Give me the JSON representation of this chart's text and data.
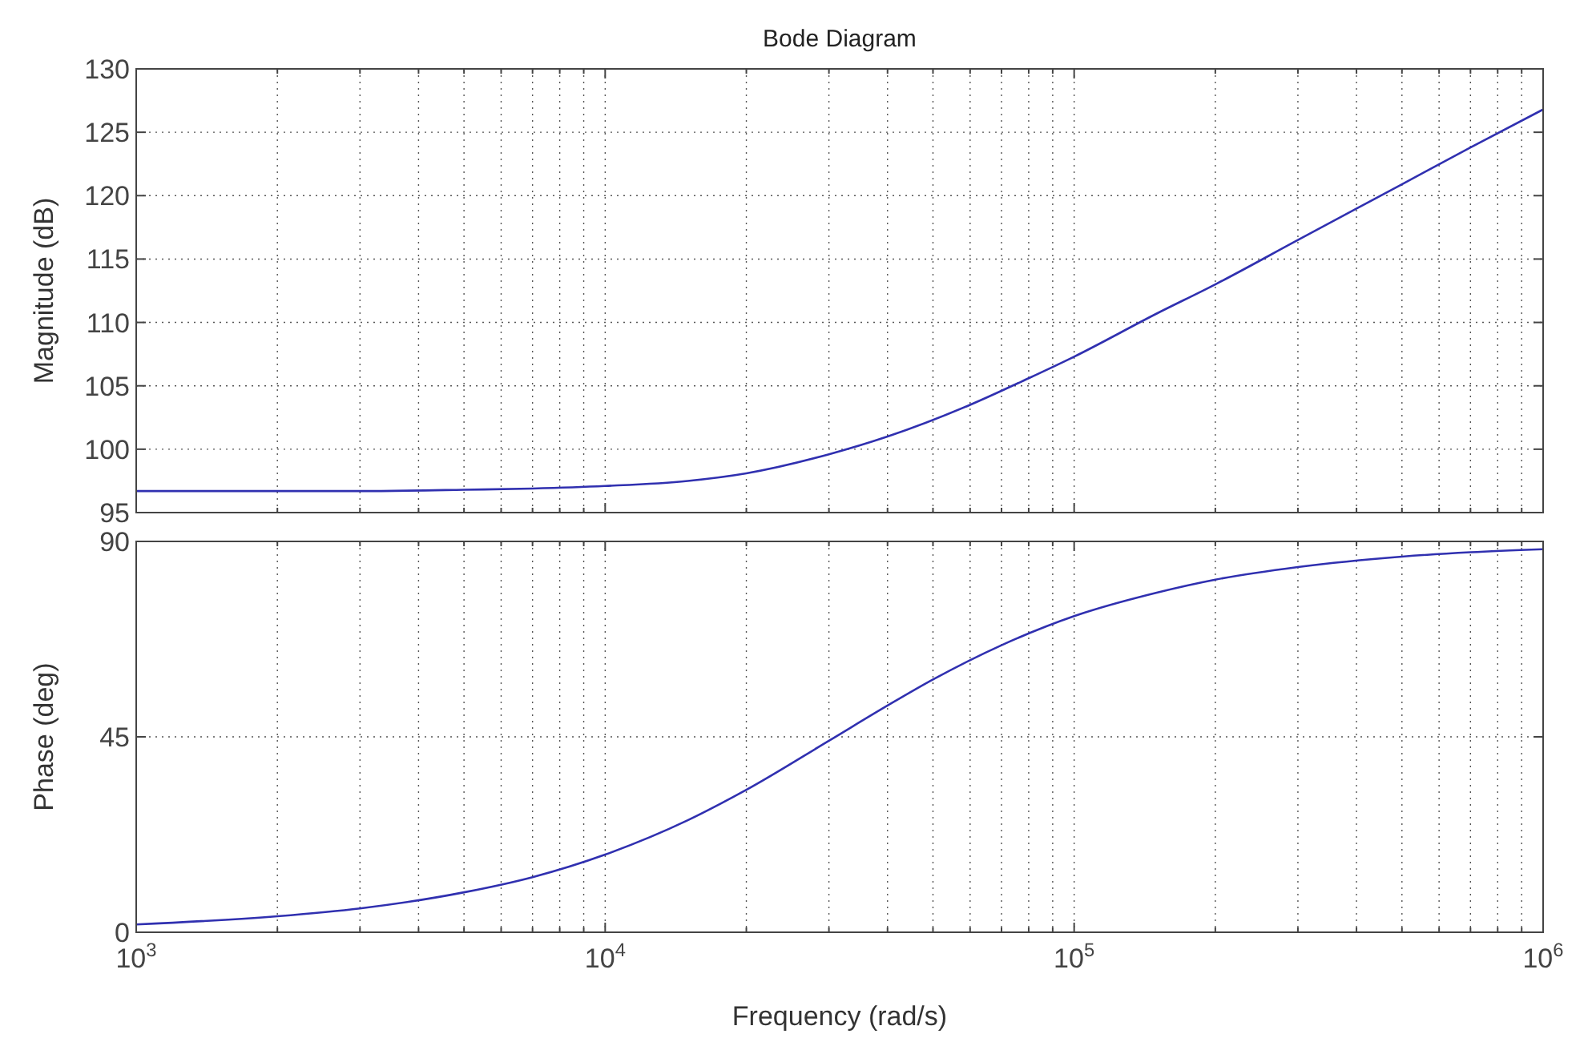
{
  "chart_data": [
    {
      "type": "line",
      "title": "Bode Diagram",
      "ylabel": "Magnitude (dB)",
      "log": "x",
      "grid": true,
      "tick_labels": "y",
      "xlim": [
        1000,
        1000000
      ],
      "ylim": [
        95,
        130
      ],
      "yticks": [
        95,
        100,
        105,
        110,
        115,
        120,
        125,
        130
      ],
      "xticks": [
        {
          "value": 1000,
          "label": null
        },
        {
          "value": 2000,
          "label": null
        },
        {
          "value": 3000,
          "label": null
        },
        {
          "value": 4000,
          "label": null
        },
        {
          "value": 5000,
          "label": null
        },
        {
          "value": 6000,
          "label": null
        },
        {
          "value": 7000,
          "label": null
        },
        {
          "value": 8000,
          "label": null
        },
        {
          "value": 9000,
          "label": null
        },
        {
          "value": 10000,
          "label": null
        },
        {
          "value": 20000,
          "label": null
        },
        {
          "value": 30000,
          "label": null
        },
        {
          "value": 40000,
          "label": null
        },
        {
          "value": 50000,
          "label": null
        },
        {
          "value": 60000,
          "label": null
        },
        {
          "value": 70000,
          "label": null
        },
        {
          "value": 80000,
          "label": null
        },
        {
          "value": 90000,
          "label": null
        },
        {
          "value": 100000,
          "label": null
        },
        {
          "value": 200000,
          "label": null
        },
        {
          "value": 300000,
          "label": null
        },
        {
          "value": 400000,
          "label": null
        },
        {
          "value": 500000,
          "label": null
        },
        {
          "value": 600000,
          "label": null
        },
        {
          "value": 700000,
          "label": null
        },
        {
          "value": 800000,
          "label": null
        },
        {
          "value": 900000,
          "label": null
        },
        {
          "value": 1000000,
          "label": null
        }
      ],
      "x": [
        1000,
        2000,
        3000,
        5000,
        7000,
        10000,
        15000,
        20000,
        30000,
        40000,
        60000,
        80000,
        100000,
        150000,
        200000,
        300000,
        500000,
        700000,
        1000000
      ],
      "series": [
        {
          "color": "#3030b0",
          "values": [
            96.7,
            96.7,
            96.7,
            96.8,
            96.9,
            97.1,
            97.5,
            98.1,
            99.6,
            101.0,
            103.5,
            105.6,
            107.3,
            110.7,
            113.0,
            116.5,
            120.9,
            123.8,
            126.8
          ]
        }
      ]
    },
    {
      "type": "line",
      "ylabel": "Phase (deg)",
      "xlabel": "Frequency (rad/s)",
      "log": "x",
      "grid": true,
      "xlim": [
        1000,
        1000000
      ],
      "ylim": [
        0,
        90
      ],
      "yticks": [
        0,
        45,
        90
      ],
      "xticks": [
        {
          "value": 1000,
          "label": "10$^{3}$"
        },
        {
          "value": 2000,
          "label": null
        },
        {
          "value": 3000,
          "label": null
        },
        {
          "value": 4000,
          "label": null
        },
        {
          "value": 5000,
          "label": null
        },
        {
          "value": 6000,
          "label": null
        },
        {
          "value": 7000,
          "label": null
        },
        {
          "value": 8000,
          "label": null
        },
        {
          "value": 9000,
          "label": null
        },
        {
          "value": 10000,
          "label": "10$^{4}$"
        },
        {
          "value": 20000,
          "label": null
        },
        {
          "value": 30000,
          "label": null
        },
        {
          "value": 40000,
          "label": null
        },
        {
          "value": 50000,
          "label": null
        },
        {
          "value": 60000,
          "label": null
        },
        {
          "value": 70000,
          "label": null
        },
        {
          "value": 80000,
          "label": null
        },
        {
          "value": 90000,
          "label": null
        },
        {
          "value": 100000,
          "label": "10$^{5}$"
        },
        {
          "value": 200000,
          "label": null
        },
        {
          "value": 300000,
          "label": null
        },
        {
          "value": 400000,
          "label": null
        },
        {
          "value": 500000,
          "label": null
        },
        {
          "value": 600000,
          "label": null
        },
        {
          "value": 700000,
          "label": null
        },
        {
          "value": 800000,
          "label": null
        },
        {
          "value": 900000,
          "label": null
        },
        {
          "value": 1000000,
          "label": "10$^{6}$"
        }
      ],
      "x": [
        1000,
        2000,
        3000,
        5000,
        7000,
        10000,
        15000,
        20000,
        30000,
        40000,
        50000,
        70000,
        100000,
        150000,
        200000,
        300000,
        500000,
        700000,
        1000000
      ],
      "series": [
        {
          "color": "#3030b0",
          "values": [
            1.8,
            3.7,
            5.5,
            9.2,
            12.7,
            17.9,
            25.8,
            32.8,
            44.1,
            52.2,
            58.2,
            66.1,
            72.8,
            78.2,
            81.2,
            84.1,
            86.5,
            87.5,
            88.2
          ]
        }
      ]
    }
  ]
}
